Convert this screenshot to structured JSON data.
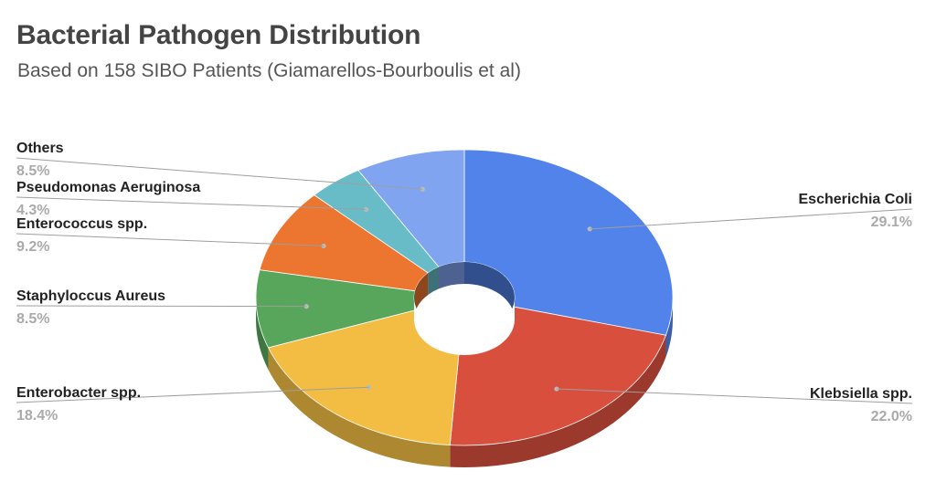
{
  "chart_data": {
    "type": "pie",
    "style": "3d-donut",
    "title": "Bacterial Pathogen Distribution",
    "subtitle": "Based on 158 SIBO Patients (Giamarellos-Bourboulis et al)",
    "slices": [
      {
        "label": "Escherichia Coli",
        "value": 29.1,
        "display": "29.1%",
        "color": "#5183ea",
        "side": "right"
      },
      {
        "label": "Klebsiella spp.",
        "value": 22.0,
        "display": "22.0%",
        "color": "#d94f3e",
        "side": "right"
      },
      {
        "label": "Enterobacter spp.",
        "value": 18.4,
        "display": "18.4%",
        "color": "#f2bd42",
        "side": "left"
      },
      {
        "label": "Staphyloccus Aureus",
        "value": 8.5,
        "display": "8.5%",
        "color": "#58a55c",
        "side": "left"
      },
      {
        "label": "Enterococcus spp.",
        "value": 9.2,
        "display": "9.2%",
        "color": "#ec7530",
        "side": "left"
      },
      {
        "label": "Pseudomonas Aeruginosa",
        "value": 4.3,
        "display": "4.3%",
        "color": "#68bcc7",
        "side": "left"
      },
      {
        "label": "Others",
        "value": 8.5,
        "display": "8.5%",
        "color": "#80a4f0",
        "side": "left"
      }
    ]
  }
}
